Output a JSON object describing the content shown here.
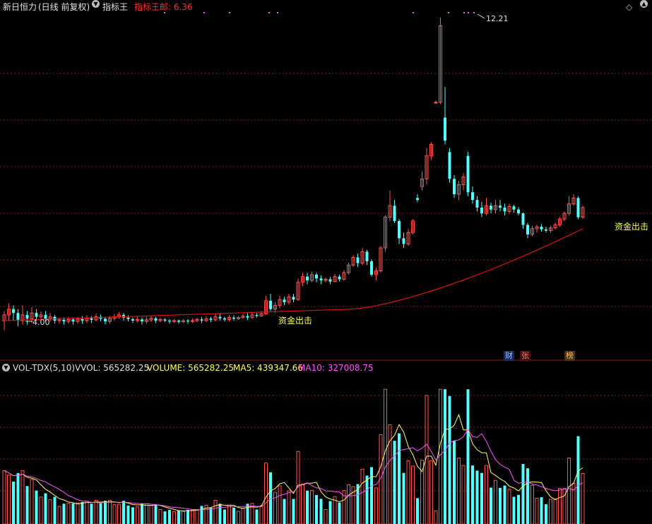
{
  "header": {
    "stock_name": "新日恒力",
    "period_label": "(日线 前复权)",
    "indicator_name": "指标王",
    "indicator_value_label": "指标王邮: 6.36"
  },
  "price_annotations": {
    "high_label": "12.21",
    "low_label": "4.00",
    "signal_label": "资金出击"
  },
  "badges": [
    "财",
    "张",
    "榜"
  ],
  "volume_header": {
    "indicator": "VOL-TDX(5,10)",
    "vvol_label": "VVOL: 565282.25",
    "volume_label": "VOLUME: 565282.25",
    "ma5_label": "MA5: 439347.66",
    "ma10_label": "MA10: 327008.75"
  },
  "colors": {
    "background": "#000000",
    "up": "#ff5555",
    "down": "#54ffff",
    "ma_line": "#dd1111",
    "ma5": "#ffff66",
    "ma10": "#ff55ff",
    "grid": "#8a1c1c",
    "label_yellow": "#ffff55"
  },
  "chart_data": [
    {
      "type": "candlestick",
      "title": "",
      "series_name": "新日恒力",
      "ylim": [
        3.6,
        12.3
      ],
      "reference_values": {
        "low": 4.0,
        "high": 12.21
      },
      "candles": [
        [
          4.3,
          4.45,
          4.55,
          4.05
        ],
        [
          4.45,
          4.6,
          4.75,
          4.3
        ],
        [
          4.6,
          4.5,
          4.7,
          4.3
        ],
        [
          4.5,
          4.3,
          4.6,
          4.15
        ],
        [
          4.3,
          4.45,
          4.7,
          4.2
        ],
        [
          4.45,
          4.35,
          4.55,
          4.2
        ],
        [
          4.35,
          4.5,
          4.65,
          4.25
        ],
        [
          4.5,
          4.4,
          4.6,
          4.3
        ],
        [
          4.4,
          4.45,
          4.55,
          4.3
        ],
        [
          4.45,
          4.35,
          4.55,
          4.28
        ],
        [
          4.35,
          4.4,
          4.5,
          4.28
        ],
        [
          4.4,
          4.3,
          4.45,
          4.22
        ],
        [
          4.3,
          4.32,
          4.38,
          4.22
        ],
        [
          4.32,
          4.28,
          4.38,
          4.2
        ],
        [
          4.28,
          4.33,
          4.4,
          4.22
        ],
        [
          4.33,
          4.28,
          4.38,
          4.2
        ],
        [
          4.28,
          4.34,
          4.4,
          4.22
        ],
        [
          4.34,
          4.3,
          4.42,
          4.22
        ],
        [
          4.3,
          4.36,
          4.44,
          4.24
        ],
        [
          4.36,
          4.32,
          4.42,
          4.24
        ],
        [
          4.32,
          4.4,
          4.48,
          4.28
        ],
        [
          4.4,
          4.35,
          4.46,
          4.28
        ],
        [
          4.35,
          4.28,
          4.4,
          4.2
        ],
        [
          4.28,
          4.36,
          4.42,
          4.22
        ],
        [
          4.36,
          4.4,
          4.47,
          4.3
        ],
        [
          4.4,
          4.45,
          4.52,
          4.35
        ],
        [
          4.45,
          4.38,
          4.5,
          4.3
        ],
        [
          4.38,
          4.34,
          4.44,
          4.28
        ],
        [
          4.34,
          4.3,
          4.38,
          4.24
        ],
        [
          4.3,
          4.33,
          4.4,
          4.25
        ],
        [
          4.33,
          4.28,
          4.38,
          4.2
        ],
        [
          4.28,
          4.32,
          4.4,
          4.22
        ],
        [
          4.32,
          4.36,
          4.42,
          4.26
        ],
        [
          4.36,
          4.3,
          4.4,
          4.24
        ],
        [
          4.3,
          4.33,
          4.38,
          4.26
        ],
        [
          4.33,
          4.3,
          4.36,
          4.26
        ],
        [
          4.3,
          4.28,
          4.34,
          4.22
        ],
        [
          4.28,
          4.3,
          4.34,
          4.24
        ],
        [
          4.3,
          4.27,
          4.33,
          4.22
        ],
        [
          4.27,
          4.3,
          4.34,
          4.24
        ],
        [
          4.3,
          4.28,
          4.34,
          4.22
        ],
        [
          4.28,
          4.3,
          4.36,
          4.24
        ],
        [
          4.3,
          4.33,
          4.38,
          4.26
        ],
        [
          4.33,
          4.3,
          4.4,
          4.24
        ],
        [
          4.3,
          4.35,
          4.42,
          4.26
        ],
        [
          4.35,
          4.32,
          4.4,
          4.26
        ],
        [
          4.32,
          4.4,
          4.48,
          4.28
        ],
        [
          4.4,
          4.36,
          4.48,
          4.3
        ],
        [
          4.36,
          4.33,
          4.4,
          4.28
        ],
        [
          4.33,
          4.38,
          4.44,
          4.28
        ],
        [
          4.38,
          4.35,
          4.44,
          4.3
        ],
        [
          4.35,
          4.38,
          4.42,
          4.32
        ],
        [
          4.38,
          4.42,
          4.48,
          4.35
        ],
        [
          4.42,
          4.38,
          4.5,
          4.32
        ],
        [
          4.38,
          4.45,
          4.52,
          4.35
        ],
        [
          4.45,
          4.42,
          4.5,
          4.38
        ],
        [
          4.42,
          4.48,
          4.55,
          4.4
        ],
        [
          4.48,
          4.82,
          4.95,
          4.45
        ],
        [
          4.82,
          4.6,
          5.0,
          4.55
        ],
        [
          4.6,
          4.7,
          4.78,
          4.5
        ],
        [
          4.7,
          4.85,
          4.95,
          4.62
        ],
        [
          4.85,
          4.78,
          4.92,
          4.7
        ],
        [
          4.78,
          4.92,
          5.0,
          4.72
        ],
        [
          4.92,
          4.85,
          5.0,
          4.78
        ],
        [
          4.85,
          5.3,
          5.4,
          4.82
        ],
        [
          5.3,
          5.45,
          5.55,
          5.2
        ],
        [
          5.45,
          5.35,
          5.55,
          5.25
        ],
        [
          5.35,
          5.5,
          5.58,
          5.3
        ],
        [
          5.5,
          5.4,
          5.55,
          5.3
        ],
        [
          5.4,
          5.35,
          5.48,
          5.25
        ],
        [
          5.35,
          5.38,
          5.42,
          5.3
        ],
        [
          5.38,
          5.32,
          5.45,
          5.25
        ],
        [
          5.32,
          5.45,
          5.52,
          5.3
        ],
        [
          5.45,
          5.38,
          5.5,
          5.32
        ],
        [
          5.38,
          5.55,
          5.62,
          5.35
        ],
        [
          5.55,
          5.75,
          5.82,
          5.5
        ],
        [
          5.75,
          5.95,
          6.0,
          5.7
        ],
        [
          5.95,
          5.8,
          6.05,
          5.7
        ],
        [
          5.8,
          6.1,
          6.2,
          5.75
        ],
        [
          6.1,
          5.85,
          6.15,
          5.75
        ],
        [
          5.85,
          5.5,
          5.9,
          5.45
        ],
        [
          5.5,
          5.6,
          5.68,
          5.35
        ],
        [
          5.6,
          6.2,
          6.25,
          5.55
        ],
        [
          6.2,
          7.0,
          7.05,
          6.1
        ],
        [
          7.0,
          7.3,
          7.7,
          6.9
        ],
        [
          7.3,
          6.9,
          7.45,
          6.85
        ],
        [
          6.9,
          6.45,
          6.95,
          6.3
        ],
        [
          6.45,
          6.3,
          6.6,
          6.2
        ],
        [
          6.3,
          6.6,
          6.7,
          6.25
        ],
        [
          6.6,
          6.9,
          6.95,
          6.55
        ],
        [
          7.5,
          7.45,
          7.6,
          7.4
        ],
        [
          7.8,
          8.0,
          8.2,
          7.7
        ],
        [
          8.0,
          8.6,
          8.8,
          7.85
        ],
        [
          8.6,
          8.9,
          8.95,
          8.5
        ],
        [
          10.0,
          10.0,
          10.05,
          9.95
        ],
        [
          10.0,
          12.0,
          12.21,
          9.95
        ],
        [
          9.6,
          9.0,
          10.4,
          8.9
        ],
        [
          8.7,
          8.0,
          8.8,
          7.9
        ],
        [
          8.0,
          7.6,
          8.1,
          7.5
        ],
        [
          7.6,
          7.85,
          7.95,
          7.45
        ],
        [
          7.85,
          8.05,
          8.15,
          7.7
        ],
        [
          8.6,
          7.65,
          8.7,
          7.55
        ],
        [
          7.65,
          7.45,
          7.8,
          7.35
        ],
        [
          7.45,
          7.25,
          7.55,
          7.15
        ],
        [
          7.25,
          7.1,
          7.4,
          7.0
        ],
        [
          7.1,
          7.3,
          7.5,
          7.05
        ],
        [
          7.3,
          7.2,
          7.38,
          7.1
        ],
        [
          7.2,
          7.3,
          7.45,
          7.1
        ],
        [
          7.3,
          7.25,
          7.45,
          7.15
        ],
        [
          7.25,
          7.15,
          7.35,
          7.05
        ],
        [
          7.15,
          7.28,
          7.35,
          7.1
        ],
        [
          7.28,
          7.2,
          7.32,
          7.12
        ],
        [
          7.2,
          7.1,
          7.26,
          7.05
        ],
        [
          7.1,
          6.8,
          7.12,
          6.7
        ],
        [
          6.8,
          6.55,
          6.85,
          6.45
        ],
        [
          6.55,
          6.7,
          6.78,
          6.5
        ],
        [
          6.7,
          6.75,
          6.8,
          6.6
        ],
        [
          6.75,
          6.68,
          6.82,
          6.62
        ],
        [
          6.68,
          6.65,
          6.75,
          6.6
        ],
        [
          6.65,
          6.72,
          6.78,
          6.6
        ],
        [
          6.72,
          6.8,
          6.86,
          6.68
        ],
        [
          6.8,
          6.95,
          7.0,
          6.75
        ],
        [
          6.95,
          7.1,
          7.15,
          6.9
        ],
        [
          7.1,
          7.35,
          7.55,
          7.05
        ],
        [
          7.35,
          7.5,
          7.6,
          7.3
        ],
        [
          7.5,
          7.0,
          7.55,
          6.95
        ],
        [
          7.0,
          7.25,
          7.3,
          6.95
        ]
      ],
      "ma_line_description": "long-period moving average rising from about 4.3 to 6.7"
    },
    {
      "type": "bar",
      "title": "",
      "series": [
        {
          "name": "VOLUME",
          "current": 565282.25
        },
        {
          "name": "MA5",
          "current": 439347.66
        },
        {
          "name": "MA10",
          "current": 327008.75
        }
      ],
      "ylim": [
        0,
        1500000
      ]
    }
  ]
}
